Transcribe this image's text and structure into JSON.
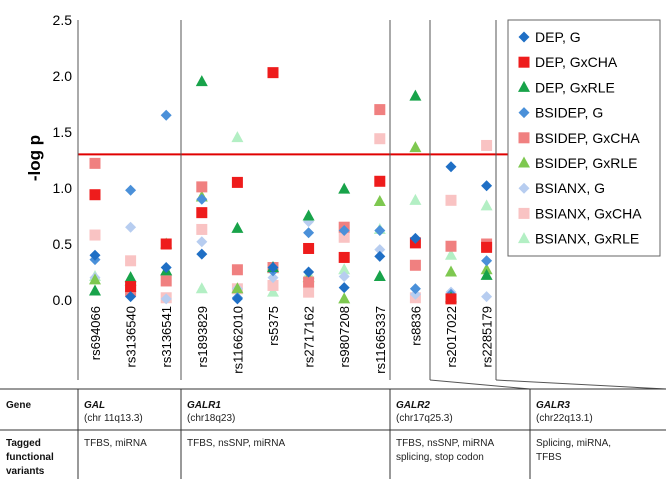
{
  "chart_data": {
    "type": "scatter",
    "ylabel": "-log p",
    "ylim": [
      0,
      2.5
    ],
    "yticks": [
      "0.0",
      "0.5",
      "1.0",
      "1.5",
      "2.0",
      "2.5"
    ],
    "threshold": 1.3,
    "categories": [
      "rs694066",
      "rs3136540",
      "rs3136541",
      "rs1893829",
      "rs11662010",
      "rs5375",
      "rs2717162",
      "rs9807208",
      "rs11665337",
      "rs8836",
      "rs2017022",
      "rs2285179"
    ],
    "series": [
      {
        "name": "DEP, G",
        "marker": "diamond",
        "color": "#1f6fc5",
        "values": [
          0.4,
          0.03,
          0.29,
          0.41,
          0.01,
          0.29,
          0.25,
          0.11,
          0.39,
          0.55,
          1.19,
          1.02
        ]
      },
      {
        "name": "DEP, GxCHA",
        "marker": "square",
        "color": "#ee1c1c",
        "values": [
          0.94,
          0.12,
          0.5,
          0.78,
          1.05,
          2.03,
          0.46,
          0.38,
          1.06,
          0.51,
          0.01,
          0.47
        ]
      },
      {
        "name": "DEP, GxRLE",
        "marker": "triangle",
        "color": "#18a34a",
        "values": [
          0.08,
          0.2,
          0.26,
          1.95,
          0.64,
          0.29,
          0.75,
          0.99,
          0.21,
          1.82,
          0.02,
          0.22
        ]
      },
      {
        "name": "BSIDEP, G",
        "marker": "diamond",
        "color": "#4a90d9",
        "values": [
          0.36,
          0.98,
          1.65,
          0.9,
          0.02,
          0.26,
          0.6,
          0.62,
          0.62,
          0.1,
          0.05,
          0.35
        ]
      },
      {
        "name": "BSIDEP, GxCHA",
        "marker": "square",
        "color": "#f08080",
        "values": [
          1.22,
          0.08,
          0.17,
          1.01,
          0.27,
          0.29,
          0.16,
          0.65,
          1.7,
          0.31,
          0.48,
          0.5
        ]
      },
      {
        "name": "BSIDEP, GxRLE",
        "marker": "triangle",
        "color": "#7ec850",
        "values": [
          0.18,
          0.17,
          0.5,
          0.92,
          0.1,
          0.28,
          0.2,
          0.01,
          0.88,
          1.36,
          0.25,
          0.27
        ]
      },
      {
        "name": "BSIANX, G",
        "marker": "diamond",
        "color": "#b7cdf0",
        "values": [
          0.2,
          0.65,
          0.01,
          0.52,
          0.1,
          0.2,
          0.7,
          0.21,
          0.45,
          0.05,
          0.07,
          0.03
        ]
      },
      {
        "name": "BSIANX, GxCHA",
        "marker": "square",
        "color": "#f9c3c3",
        "values": [
          0.58,
          0.35,
          0.02,
          0.63,
          0.1,
          0.13,
          0.07,
          0.56,
          1.44,
          0.02,
          0.89,
          1.38
        ]
      },
      {
        "name": "BSIANX, GxRLE",
        "marker": "triangle",
        "color": "#b3efc4",
        "values": [
          0.21,
          0.11,
          0.26,
          0.1,
          1.45,
          0.07,
          0.23,
          0.27,
          0.63,
          0.89,
          0.4,
          0.84
        ]
      }
    ],
    "legend_position": "right",
    "grid": false
  },
  "table": {
    "header_gene": "Gene",
    "header_variants": "Tagged functional variants",
    "groups": [
      {
        "gene": "GAL",
        "chr": "(chr 11q13.3)",
        "variants": "TFBS, miRNA"
      },
      {
        "gene": "GALR1",
        "chr": "(chr18q23)",
        "variants": "TFBS, nsSNP, miRNA"
      },
      {
        "gene": "GALR2",
        "chr": "(chr17q25.3)",
        "variants_line1": "TFBS, nsSNP, miRNA",
        "variants_line2": "splicing, stop codon"
      },
      {
        "gene": "GALR3",
        "chr": "(chr22q13.1)",
        "variants_line1": "Splicing, miRNA,",
        "variants_line2": "TFBS"
      }
    ]
  }
}
